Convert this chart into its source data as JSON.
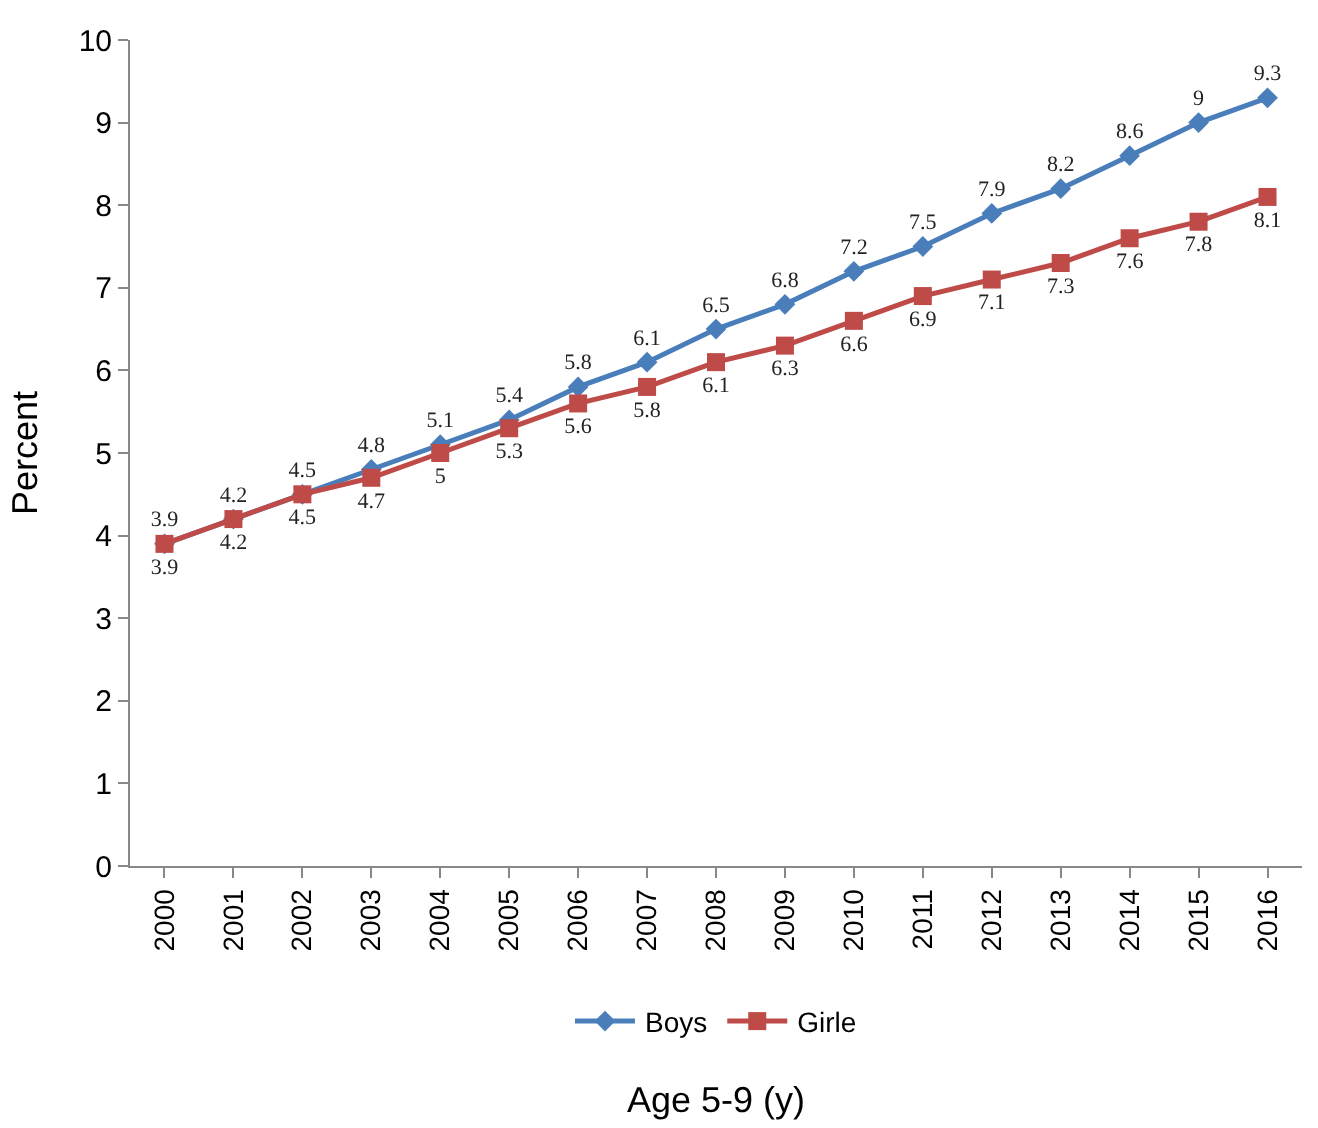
{
  "chart_data": {
    "type": "line",
    "xlabel": "Age 5-9 (y)",
    "ylabel": "Percent",
    "categories": [
      "2000",
      "2001",
      "2002",
      "2003",
      "2004",
      "2005",
      "2006",
      "2007",
      "2008",
      "2009",
      "2010",
      "2011",
      "2012",
      "2013",
      "2014",
      "2015",
      "2016"
    ],
    "series": [
      {
        "name": "Boys",
        "color": "#4a7ebb",
        "marker": "diamond",
        "values": [
          3.9,
          4.2,
          4.5,
          4.8,
          5.1,
          5.4,
          5.8,
          6.1,
          6.5,
          6.8,
          7.2,
          7.5,
          7.9,
          8.2,
          8.6,
          9,
          9.3
        ]
      },
      {
        "name": "Girle",
        "color": "#be4b48",
        "marker": "square",
        "values": [
          3.9,
          4.2,
          4.5,
          4.7,
          5,
          5.3,
          5.6,
          5.8,
          6.1,
          6.3,
          6.6,
          6.9,
          7.1,
          7.3,
          7.6,
          7.8,
          8.1
        ]
      }
    ],
    "ylim": [
      0,
      10
    ],
    "yticks": [
      0,
      1,
      2,
      3,
      4,
      5,
      6,
      7,
      8,
      9,
      10
    ],
    "legend": "bottom",
    "data_labels": true,
    "line_style": "solid"
  }
}
